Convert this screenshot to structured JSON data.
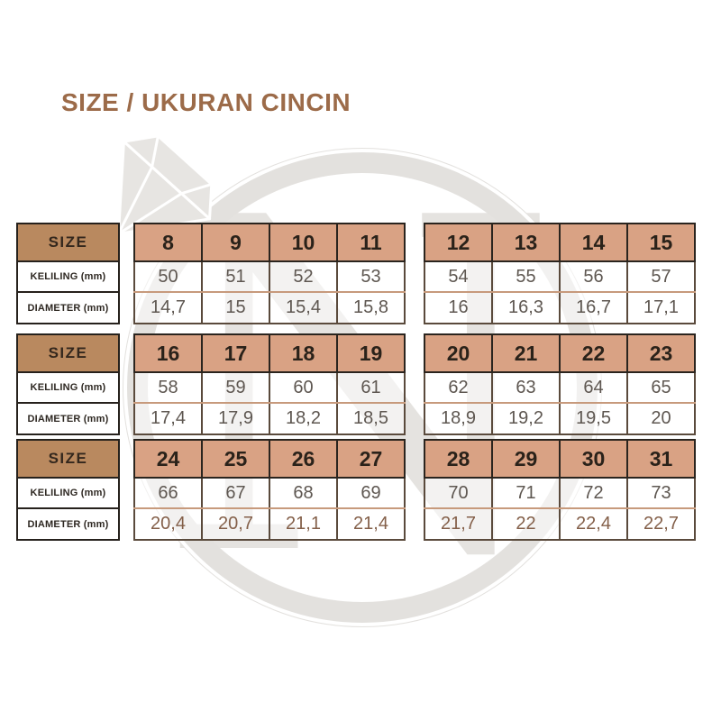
{
  "page": {
    "title": "SIZE / UKURAN CINCIN"
  },
  "colors": {
    "title_brown": "#9c6b49",
    "label_header_tan": "#b9895f",
    "size_header_salmon": "#d9a284",
    "table_border_dark": "#26211c",
    "inner_separator_rust": "#c79a7c",
    "value_gray": "#5e5751",
    "watermark_gray": "#e3e1de"
  },
  "icons": {
    "watermark": "ring-gem-letter-N-logo"
  },
  "row_labels": {
    "size": "SIZE",
    "keliling": "KELILING (mm)",
    "diameter": "DIAMETER (mm)"
  },
  "bands": [
    {
      "groups": [
        {
          "sizes": [
            "8",
            "9",
            "10",
            "11"
          ],
          "keliling": [
            "50",
            "51",
            "52",
            "53"
          ],
          "diameter": [
            "14,7",
            "15",
            "15,4",
            "15,8"
          ]
        },
        {
          "sizes": [
            "12",
            "13",
            "14",
            "15"
          ],
          "keliling": [
            "54",
            "55",
            "56",
            "57"
          ],
          "diameter": [
            "16",
            "16,3",
            "16,7",
            "17,1"
          ]
        }
      ]
    },
    {
      "groups": [
        {
          "sizes": [
            "16",
            "17",
            "18",
            "19"
          ],
          "keliling": [
            "58",
            "59",
            "60",
            "61"
          ],
          "diameter": [
            "17,4",
            "17,9",
            "18,2",
            "18,5"
          ]
        },
        {
          "sizes": [
            "20",
            "21",
            "22",
            "23"
          ],
          "keliling": [
            "62",
            "63",
            "64",
            "65"
          ],
          "diameter": [
            "18,9",
            "19,2",
            "19,5",
            "20"
          ]
        }
      ]
    },
    {
      "groups": [
        {
          "sizes": [
            "24",
            "25",
            "26",
            "27"
          ],
          "keliling": [
            "66",
            "67",
            "68",
            "69"
          ],
          "diameter": [
            "20,4",
            "20,7",
            "21,1",
            "21,4"
          ]
        },
        {
          "sizes": [
            "28",
            "29",
            "30",
            "31"
          ],
          "keliling": [
            "70",
            "71",
            "72",
            "73"
          ],
          "diameter": [
            "21,7",
            "22",
            "22,4",
            "22,7"
          ]
        }
      ]
    }
  ],
  "chart_data": {
    "type": "table",
    "title": "SIZE / UKURAN CINCIN",
    "row_headers": [
      "SIZE",
      "KELILING (mm)",
      "DIAMETER (mm)"
    ],
    "sizes": [
      8,
      9,
      10,
      11,
      12,
      13,
      14,
      15,
      16,
      17,
      18,
      19,
      20,
      21,
      22,
      23,
      24,
      25,
      26,
      27,
      28,
      29,
      30,
      31
    ],
    "keliling_mm": [
      50,
      51,
      52,
      53,
      54,
      55,
      56,
      57,
      58,
      59,
      60,
      61,
      62,
      63,
      64,
      65,
      66,
      67,
      68,
      69,
      70,
      71,
      72,
      73
    ],
    "diameter_mm": [
      14.7,
      15,
      15.4,
      15.8,
      16,
      16.3,
      16.7,
      17.1,
      17.4,
      17.9,
      18.2,
      18.5,
      18.9,
      19.2,
      19.5,
      20,
      20.4,
      20.7,
      21.1,
      21.4,
      21.7,
      22,
      22.4,
      22.7
    ]
  }
}
